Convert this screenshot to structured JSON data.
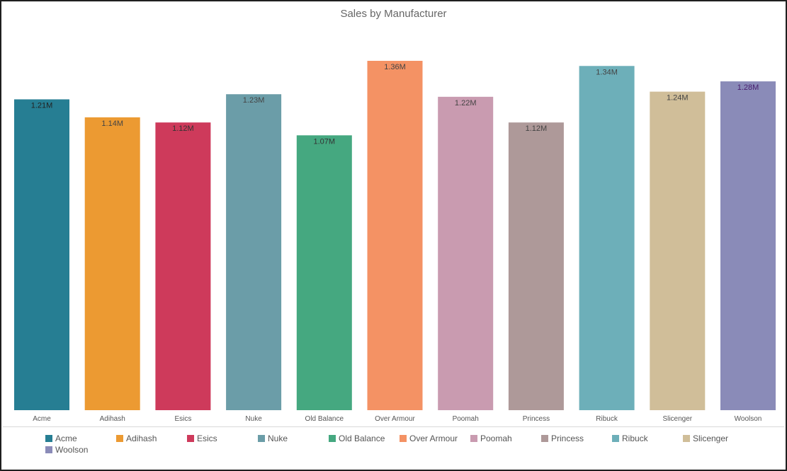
{
  "chart_data": {
    "type": "bar",
    "title": "Sales by Manufacturer",
    "xlabel": "",
    "ylabel": "",
    "categories": [
      "Acme",
      "Adihash",
      "Esics",
      "Nuke",
      "Old Balance",
      "Over Armour",
      "Poomah",
      "Princess",
      "Ribuck",
      "Slicenger",
      "Woolson"
    ],
    "values": [
      1.21,
      1.14,
      1.12,
      1.23,
      1.07,
      1.36,
      1.22,
      1.12,
      1.34,
      1.24,
      1.28
    ],
    "value_unit": "M",
    "data_labels": [
      "1.21M",
      "1.14M",
      "1.12M",
      "1.23M",
      "1.07M",
      "1.36M",
      "1.22M",
      "1.12M",
      "1.34M",
      "1.24M",
      "1.28M"
    ],
    "colors": [
      "#267E93",
      "#EC9A32",
      "#CE3A5B",
      "#6B9DA8",
      "#45A880",
      "#F49264",
      "#C99BB0",
      "#AE9999",
      "#6DAFB9",
      "#D0BE99",
      "#8A8BB8"
    ],
    "label_colors": [
      "#222222",
      "#444444",
      "#333333",
      "#444444",
      "#333333",
      "#444444",
      "#444444",
      "#444444",
      "#444444",
      "#444444",
      "#4a2070"
    ],
    "ylim": [
      0,
      1.36
    ],
    "grid": false,
    "legend": "bottom"
  }
}
